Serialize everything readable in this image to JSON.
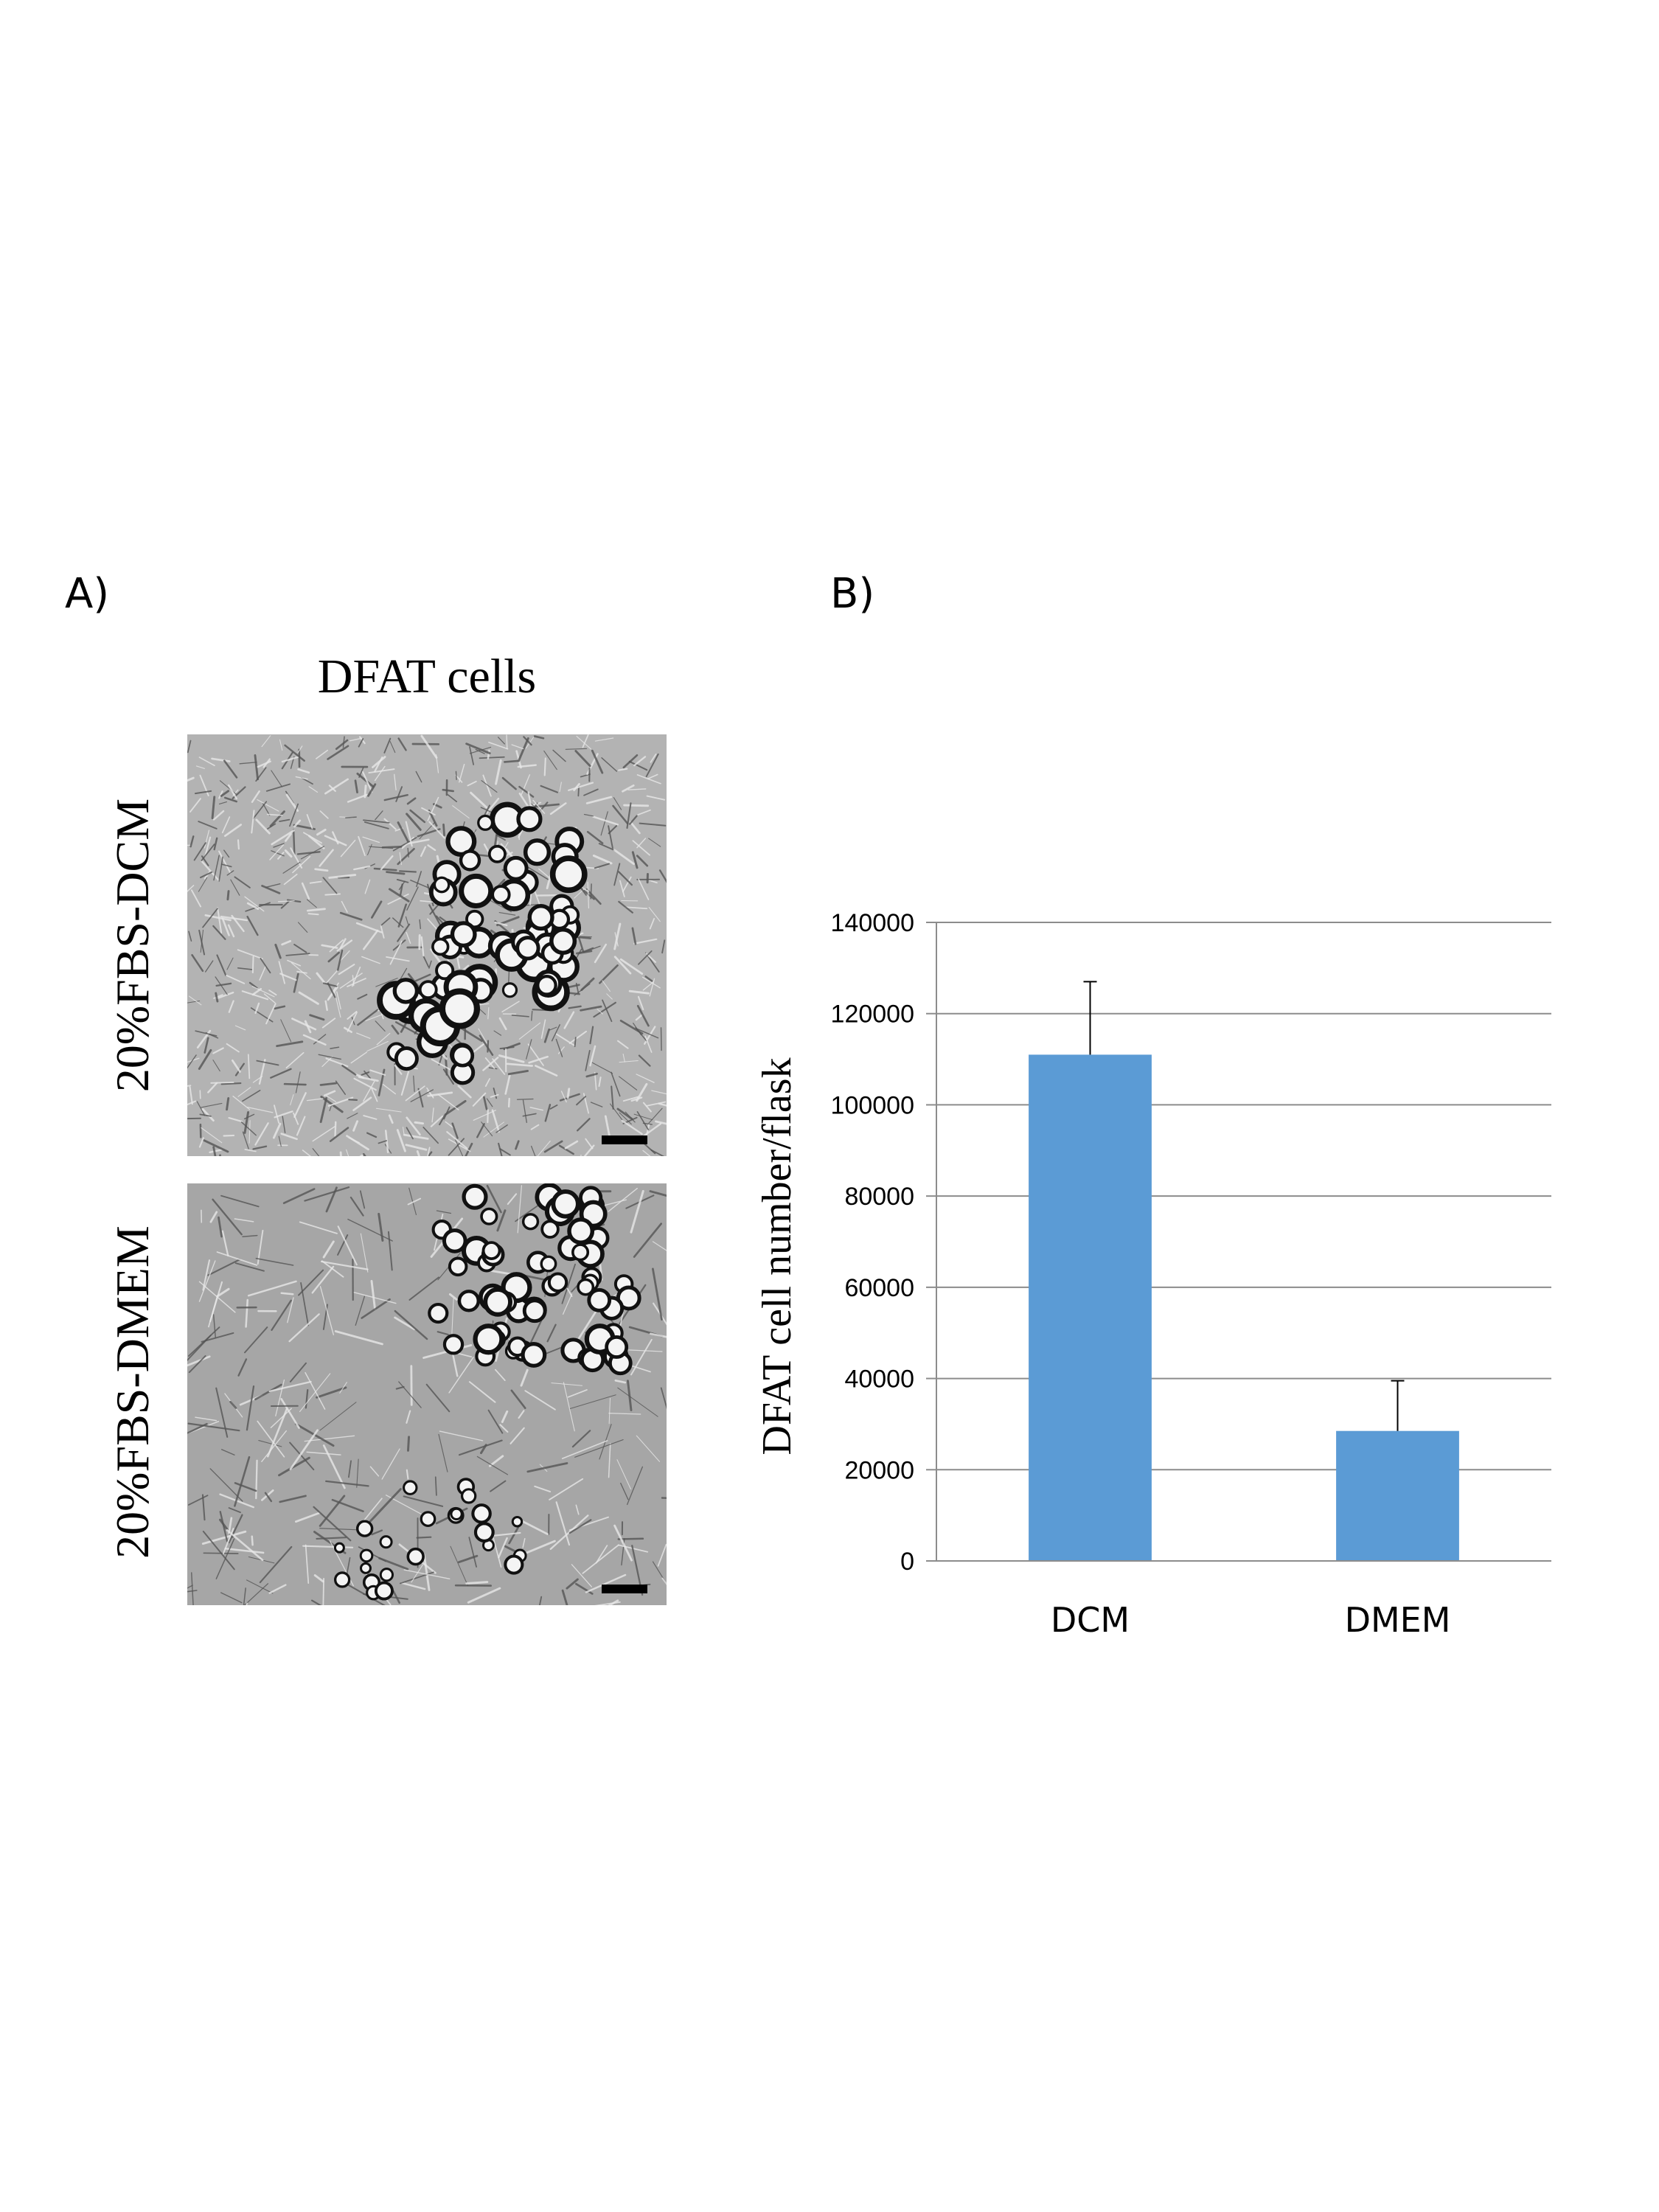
{
  "panel_a": {
    "label": "A)",
    "title": "DFAT cells",
    "rows": [
      {
        "label": "20%FBS-DCM"
      },
      {
        "label": "20%FBS-DMEM"
      }
    ]
  },
  "panel_b": {
    "label": "B)"
  },
  "colors": {
    "bar": "#5b9bd5",
    "grid": "#8c8c8c",
    "error_bar": "#000000"
  },
  "chart_data": {
    "type": "bar",
    "categories": [
      "DCM",
      "DMEM"
    ],
    "values": [
      111000,
      28500
    ],
    "error": [
      16000,
      11000
    ],
    "xlabel": "",
    "ylabel": "DFAT cell number/flask",
    "ylim": [
      0,
      140000
    ],
    "yticks": [
      0,
      20000,
      40000,
      60000,
      80000,
      100000,
      120000,
      140000
    ],
    "grid": true,
    "legend": "none"
  }
}
